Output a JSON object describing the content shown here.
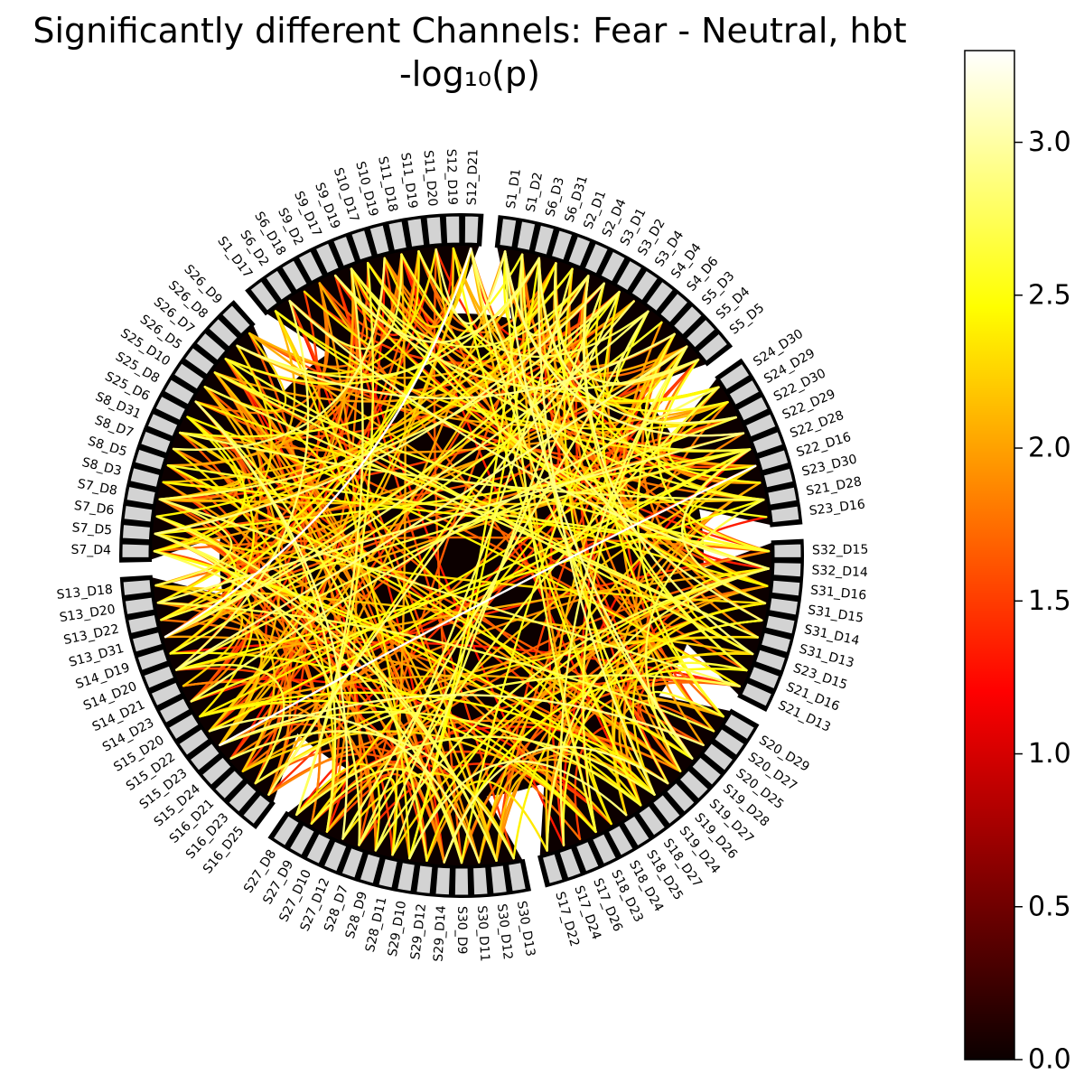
{
  "title": "Significantly different Channels: Fear - Neutral, hbt",
  "subtitle": "-log₁₀(p)",
  "colorbar": {
    "min": 0.0,
    "max": 3.3,
    "ticks": [
      0.0,
      0.5,
      1.0,
      1.5,
      2.0,
      2.5,
      3.0
    ],
    "tick_labels": [
      "0.0",
      "0.5",
      "1.0",
      "1.5",
      "2.0",
      "2.5",
      "3.0"
    ],
    "colormap": "hot"
  },
  "colors": {
    "background_disc": "#0c0000",
    "node_fill": "#d3d3d3",
    "node_stroke": "#000000"
  },
  "chart_data": {
    "type": "chord",
    "groups": [
      [
        "S1_D1",
        "S1_D2",
        "S6_D3",
        "S6_D31",
        "S2_D1",
        "S2_D4",
        "S3_D1",
        "S3_D2",
        "S3_D4",
        "S4_D4",
        "S4_D6",
        "S5_D3",
        "S5_D4",
        "S5_D5"
      ],
      [
        "S24_D30",
        "S24_D29",
        "S22_D30",
        "S22_D29",
        "S22_D28",
        "S22_D16",
        "S23_D30",
        "S21_D28",
        "S23_D16"
      ],
      [
        "S32_D15",
        "S32_D14",
        "S31_D16",
        "S31_D15",
        "S31_D14",
        "S31_D13",
        "S23_D15",
        "S21_D16",
        "S21_D13"
      ],
      [
        "S20_D29",
        "S20_D27",
        "S20_D25",
        "S19_D28",
        "S19_D27",
        "S19_D26",
        "S19_D24",
        "S18_D27",
        "S18_D25",
        "S18_D24",
        "S18_D23",
        "S17_D26",
        "S17_D24",
        "S17_D22"
      ],
      [
        "S30_D13",
        "S30_D12",
        "S30_D11",
        "S30_D9",
        "S29_D14",
        "S29_D12",
        "S29_D10",
        "S28_D11",
        "S28_D9",
        "S28_D7",
        "S27_D12",
        "S27_D10",
        "S27_D9",
        "S27_D8"
      ],
      [
        "S16_D25",
        "S16_D23",
        "S16_D21",
        "S15_D24",
        "S15_D23",
        "S15_D22",
        "S15_D20",
        "S14_D23",
        "S14_D21",
        "S14_D20",
        "S14_D19",
        "S13_D31",
        "S13_D22",
        "S13_D20",
        "S13_D18"
      ],
      [
        "S7_D4",
        "S7_D5",
        "S7_D6",
        "S7_D8",
        "S8_D3",
        "S8_D5",
        "S8_D7",
        "S8_D31",
        "S25_D6",
        "S25_D8",
        "S25_D10",
        "S26_D5",
        "S26_D7",
        "S26_D8",
        "S26_D9"
      ],
      [
        "S1_D17",
        "S6_D2",
        "S6_D18",
        "S9_D2",
        "S9_D17",
        "S9_D19",
        "S10_D17",
        "S10_D19",
        "S11_D18",
        "S11_D19",
        "S11_D20",
        "S12_D19",
        "S12_D21"
      ]
    ],
    "connection_count": 380,
    "value_range": [
      1.3,
      3.3
    ],
    "highlight_connections": [
      {
        "from": "S12_D21",
        "to": "S13_D31",
        "value": 3.3
      },
      {
        "from": "S22_D16",
        "to": "S15_D23",
        "value": 3.3
      },
      {
        "from": "S5_D4",
        "to": "S14_D20",
        "value": 2.9
      },
      {
        "from": "S24_D30",
        "to": "S14_D23",
        "value": 2.8
      },
      {
        "from": "S32_D15",
        "to": "S26_D5",
        "value": 2.6
      },
      {
        "from": "S19_D28",
        "to": "S8_D5",
        "value": 2.5
      }
    ]
  }
}
